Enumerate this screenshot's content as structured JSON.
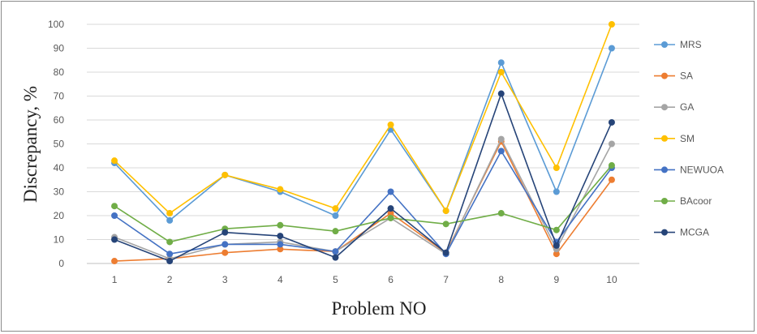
{
  "chart_data": {
    "type": "line",
    "xlabel": "Problem NO",
    "ylabel": "Discrepancy, %",
    "ylim": [
      0,
      100
    ],
    "yticks": [
      0,
      10,
      20,
      30,
      40,
      50,
      60,
      70,
      80,
      90,
      100
    ],
    "categories": [
      "1",
      "2",
      "3",
      "4",
      "5",
      "6",
      "7",
      "8",
      "9",
      "10"
    ],
    "grid": true,
    "legend_position": "right",
    "series": [
      {
        "name": "MRS",
        "color": "#5b9bd5",
        "values": [
          42,
          18,
          37,
          30,
          20,
          56,
          22,
          84,
          30,
          90
        ]
      },
      {
        "name": "SA",
        "color": "#ed7d31",
        "values": [
          1,
          2,
          4.5,
          6,
          5,
          21,
          4.5,
          51,
          4,
          35
        ]
      },
      {
        "name": "GA",
        "color": "#a5a5a5",
        "values": [
          11,
          2,
          8,
          9,
          5,
          19,
          4,
          52,
          6,
          50
        ]
      },
      {
        "name": "SM",
        "color": "#ffc000",
        "values": [
          43,
          21,
          37,
          31,
          23,
          58,
          22,
          80,
          40,
          100
        ]
      },
      {
        "name": "NEWUOA",
        "color": "#4472c4",
        "values": [
          20,
          4,
          8,
          8,
          5,
          30,
          4,
          47,
          9,
          40
        ]
      },
      {
        "name": "BAcoor",
        "color": "#70ad47",
        "values": [
          24,
          9,
          14.5,
          16,
          13.5,
          19,
          16.5,
          21,
          14,
          41
        ]
      },
      {
        "name": "MCGA",
        "color": "#264478",
        "values": [
          10,
          1,
          13,
          11.5,
          2.5,
          23,
          4.5,
          71,
          7.5,
          59
        ]
      }
    ]
  }
}
